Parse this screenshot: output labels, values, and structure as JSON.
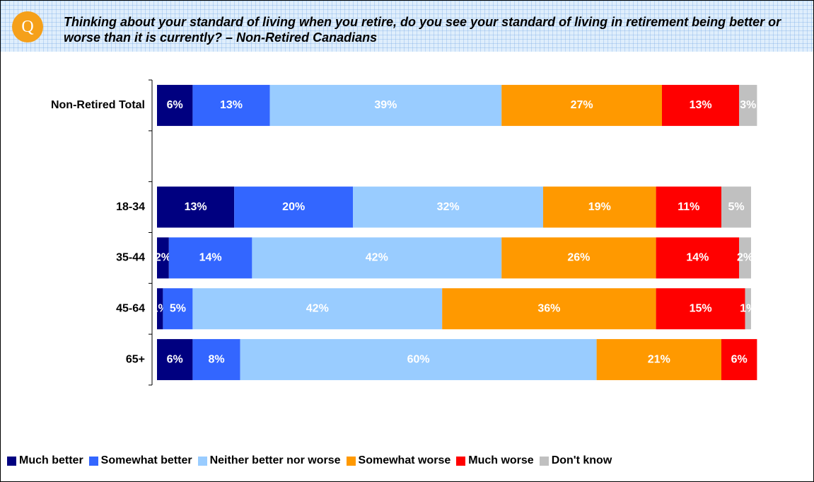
{
  "header": {
    "icon": "Q"
  },
  "chart_data": {
    "type": "stacked-bar-horizontal",
    "title": "Thinking about your standard of living when you retire, do you see your standard of living in retirement being better or worse than it is currently? – Non-Retired Canadians",
    "categories": [
      "Non-Retired Total",
      null,
      "18-34",
      "35-44",
      "45-64",
      "65+"
    ],
    "xlim": [
      0,
      100
    ],
    "series": [
      {
        "name": "Much better",
        "color": "#000080",
        "values": [
          6,
          null,
          13,
          2,
          1,
          6
        ],
        "value_labels": [
          "6%",
          null,
          "13%",
          "2%",
          "1%",
          "6%"
        ]
      },
      {
        "name": "Somewhat better",
        "color": "#3366ff",
        "values": [
          13,
          null,
          20,
          14,
          5,
          8
        ],
        "value_labels": [
          "13%",
          null,
          "20%",
          "14%",
          "5%",
          "8%"
        ]
      },
      {
        "name": "Neither better nor worse",
        "color": "#99ccff",
        "values": [
          39,
          null,
          32,
          42,
          42,
          60
        ],
        "value_labels": [
          "39%",
          null,
          "32%",
          "42%",
          "42%",
          "60%"
        ]
      },
      {
        "name": "Somewhat worse",
        "color": "#ff9900",
        "values": [
          27,
          null,
          19,
          26,
          36,
          21
        ],
        "value_labels": [
          "27%",
          null,
          "19%",
          "26%",
          "36%",
          "21%"
        ]
      },
      {
        "name": "Much worse",
        "color": "#ff0000",
        "values": [
          13,
          null,
          11,
          14,
          15,
          6
        ],
        "value_labels": [
          "13%",
          null,
          "11%",
          "14%",
          "15%",
          "6%"
        ]
      },
      {
        "name": "Don't know",
        "color": "#c0c0c0",
        "values": [
          3,
          null,
          5,
          2,
          1,
          null
        ],
        "value_labels": [
          "3%",
          null,
          "5%",
          "2%",
          "1%",
          null
        ]
      }
    ]
  }
}
